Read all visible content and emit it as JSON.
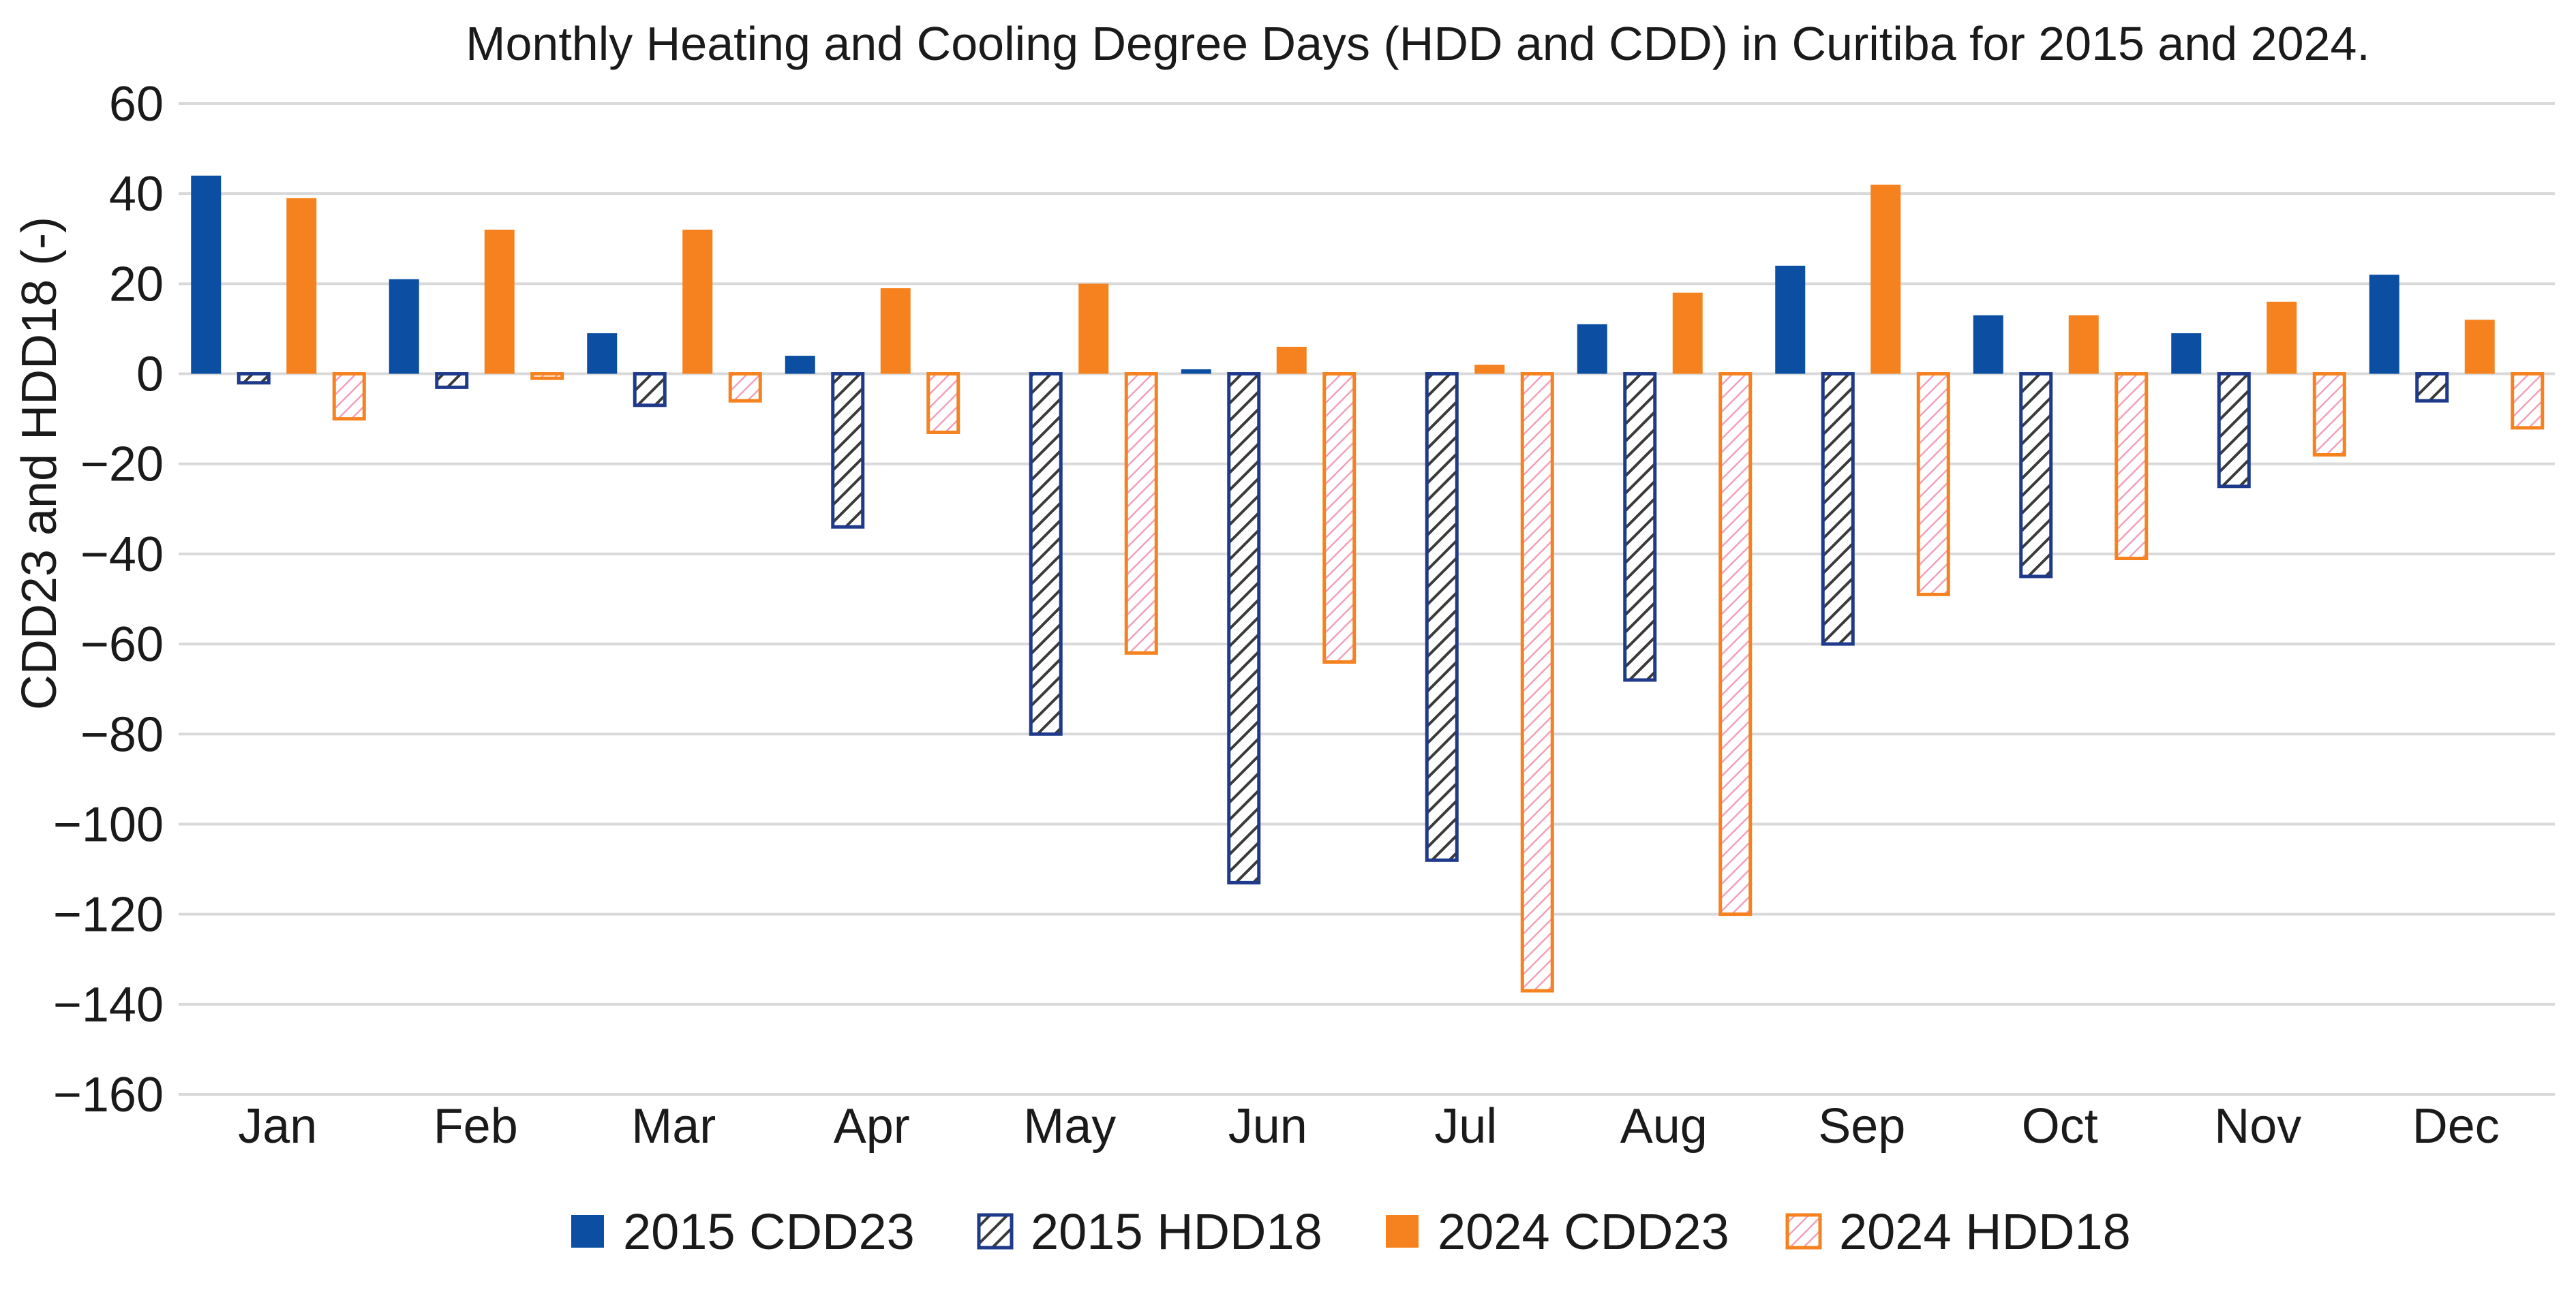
{
  "chart_data": {
    "type": "bar",
    "title": "Monthly Heating and Cooling Degree Days (HDD and CDD) in Curitiba for 2015 and 2024.",
    "xlabel": "",
    "ylabel": "CDD23 and HDD18 (-)",
    "ylim": [
      -160,
      60
    ],
    "yticks": [
      60,
      40,
      20,
      0,
      -20,
      -40,
      -60,
      -80,
      -100,
      -120,
      -140,
      -160
    ],
    "ytick_labels": [
      "60",
      "40",
      "20",
      "0",
      "−20",
      "−40",
      "−60",
      "−80",
      "−100",
      "−120",
      "−140",
      "−160"
    ],
    "grid": true,
    "legend_position": "bottom",
    "categories": [
      "Jan",
      "Feb",
      "Mar",
      "Apr",
      "May",
      "Jun",
      "Jul",
      "Aug",
      "Sep",
      "Oct",
      "Nov",
      "Dec"
    ],
    "series": [
      {
        "name": "2015 CDD23",
        "style": "solid",
        "color": "#0b4ea2",
        "stroke": "#0b4ea2",
        "values": [
          44,
          21,
          9,
          4,
          0,
          1,
          0,
          11,
          24,
          13,
          9,
          22
        ]
      },
      {
        "name": "2015 HDD18",
        "style": "hatch-dark",
        "color": "#8a8a8a",
        "stroke": "#1f3a8a",
        "values": [
          -2,
          -3,
          -7,
          -34,
          -80,
          -113,
          -108,
          -68,
          -60,
          -45,
          -25,
          -6
        ]
      },
      {
        "name": "2024 CDD23",
        "style": "solid",
        "color": "#f6821f",
        "stroke": "#f6821f",
        "values": [
          39,
          32,
          32,
          19,
          20,
          6,
          2,
          18,
          42,
          13,
          16,
          12
        ]
      },
      {
        "name": "2024 HDD18",
        "style": "hatch-pink",
        "color": "#f2a0b8",
        "stroke": "#f6821f",
        "values": [
          -10,
          -1,
          -6,
          -13,
          -62,
          -64,
          -137,
          -120,
          -49,
          -41,
          -18,
          -12
        ]
      }
    ]
  }
}
